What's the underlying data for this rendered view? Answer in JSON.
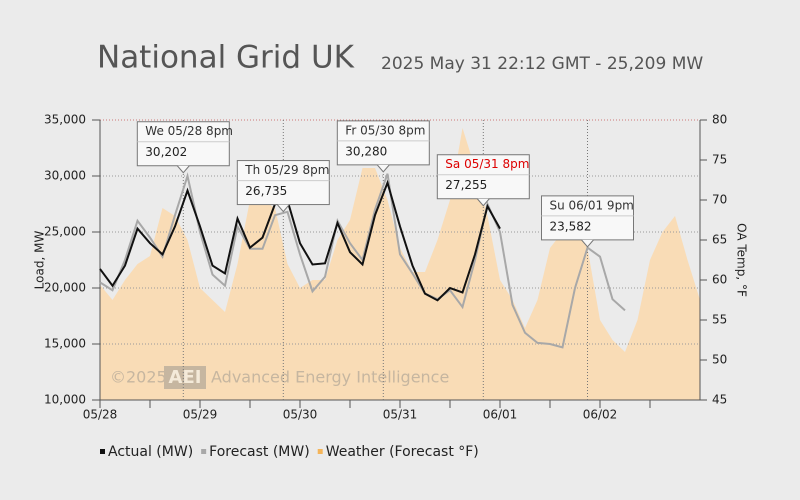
{
  "chart_data": {
    "type": "line",
    "title": "National Grid UK",
    "subtitle": "2025 May 31 22:12 GMT - 25,209 MW",
    "y_label": "Load, MW",
    "y2_label": "OA Temp, °F",
    "watermark": [
      "©2025",
      "AEI",
      "Advanced Energy Intelligence"
    ],
    "xlim": [
      0,
      6
    ],
    "xticks": [
      {
        "value": 0,
        "label": "05/28"
      },
      {
        "value": 1,
        "label": "05/29"
      },
      {
        "value": 2,
        "label": "05/30"
      },
      {
        "value": 3,
        "label": "05/31"
      },
      {
        "value": 4,
        "label": "06/01"
      },
      {
        "value": 5,
        "label": "06/02"
      }
    ],
    "ylim": [
      10000,
      35000
    ],
    "yticks": [
      {
        "value": 10000,
        "label": "10,000"
      },
      {
        "value": 15000,
        "label": "15,000"
      },
      {
        "value": 20000,
        "label": "20,000"
      },
      {
        "value": 25000,
        "label": "25,000"
      },
      {
        "value": 30000,
        "label": "30,000"
      },
      {
        "value": 35000,
        "label": "35,000"
      }
    ],
    "y2lim": [
      45,
      80
    ],
    "y2ticks": [
      45,
      50,
      55,
      60,
      65,
      70,
      75,
      80
    ],
    "grid": true,
    "x": [
      0,
      0.125,
      0.25,
      0.375,
      0.5,
      0.625,
      0.75,
      0.875,
      1,
      1.125,
      1.25,
      1.375,
      1.5,
      1.625,
      1.75,
      1.875,
      2,
      2.125,
      2.25,
      2.375,
      2.5,
      2.625,
      2.75,
      2.875,
      3,
      3.125,
      3.25,
      3.375,
      3.5,
      3.625,
      3.75,
      3.875,
      4,
      4.125,
      4.25,
      4.375,
      4.5,
      4.625,
      4.75,
      4.875,
      5,
      5.125,
      5.25,
      5.375,
      5.5,
      5.625,
      5.75,
      5.875,
      6
    ],
    "series": [
      {
        "name": "Weather (Forecast °F)",
        "color": "#fbd9ad",
        "kind": "area",
        "axis": "y2",
        "values": [
          59.4,
          57.5,
          60,
          62,
          63,
          69,
          68,
          65,
          59,
          57.5,
          56,
          62,
          70,
          70,
          69,
          62,
          59,
          60,
          60,
          65,
          67.5,
          74,
          74,
          70,
          64,
          61,
          61,
          65,
          70,
          79,
          74,
          68,
          60,
          57.5,
          54,
          57.5,
          64,
          66,
          66,
          64,
          55,
          52.5,
          51,
          55,
          62.5,
          66,
          68,
          62.5,
          57.5
        ]
      },
      {
        "name": "Forecast (MW)",
        "color": "#a8a8a8",
        "kind": "line",
        "values": [
          20500,
          19800,
          22500,
          26000,
          24500,
          22800,
          26500,
          30000,
          25000,
          21200,
          20200,
          25500,
          23500,
          23500,
          26500,
          26800,
          23000,
          19700,
          21000,
          26000,
          24000,
          22500,
          27000,
          30200,
          23000,
          21300,
          19500,
          19000,
          19800,
          18300,
          22500,
          27500,
          25000,
          18500,
          16000,
          15100,
          15000,
          14700,
          20000,
          23600,
          22800,
          19000,
          18000,
          null,
          null,
          null,
          null,
          null,
          null
        ]
      },
      {
        "name": "Actual (MW)",
        "color": "#111111",
        "kind": "line",
        "values": [
          21700,
          20200,
          22000,
          25300,
          24000,
          23000,
          25500,
          28700,
          25500,
          22000,
          21300,
          26200,
          23600,
          24500,
          27500,
          27800,
          24000,
          22100,
          22200,
          25800,
          23200,
          22100,
          26500,
          29400,
          25500,
          22000,
          19500,
          18900,
          20000,
          19600,
          23000,
          27300,
          25300,
          null,
          null,
          null,
          null,
          null,
          null,
          null,
          null,
          null,
          null,
          null,
          null,
          null,
          null,
          null,
          null
        ]
      }
    ],
    "annotations": [
      {
        "text": "We 05/28 8pm",
        "x": 0.833,
        "value": 30202,
        "value_label": "30,202",
        "color": "#333333"
      },
      {
        "text": "Th 05/29 8pm",
        "x": 1.833,
        "value": 26735,
        "value_label": "26,735",
        "color": "#333333"
      },
      {
        "text": "Fr 05/30 8pm",
        "x": 2.833,
        "value": 30280,
        "value_label": "30,280",
        "color": "#333333"
      },
      {
        "text": "Sa 05/31 8pm",
        "x": 3.833,
        "value": 27255,
        "value_label": "27,255",
        "color": "#dd0000"
      },
      {
        "text": "Su 06/01 9pm",
        "x": 4.875,
        "value": 23582,
        "value_label": "23,582",
        "color": "#333333"
      }
    ]
  }
}
